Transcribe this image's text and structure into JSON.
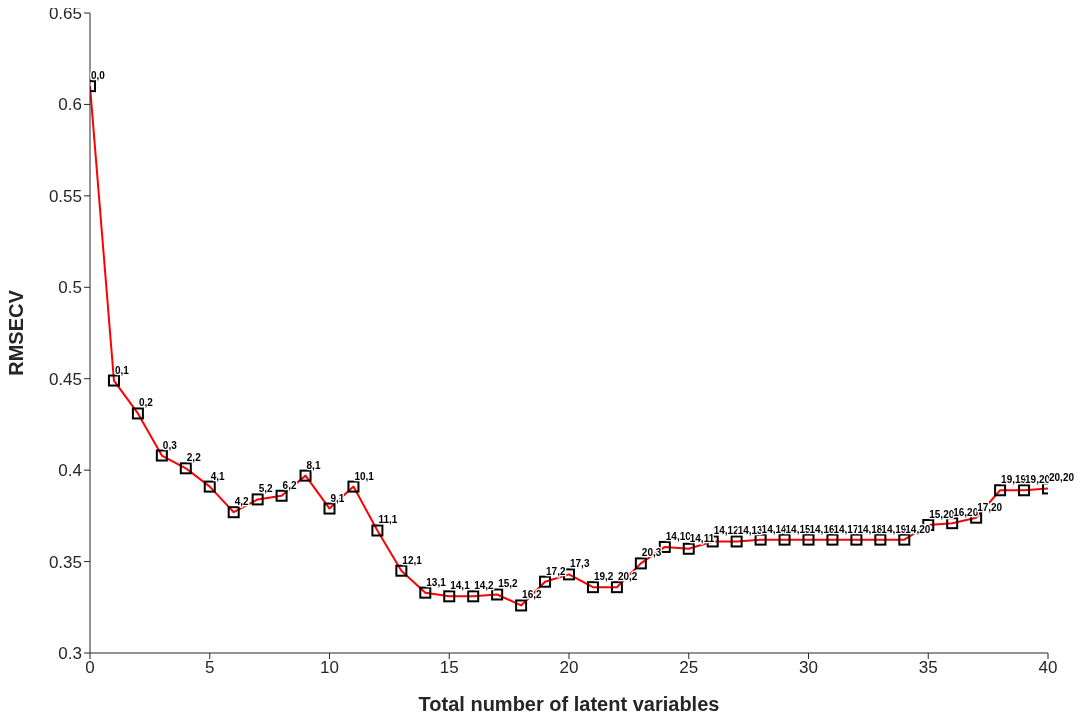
{
  "chart_data": {
    "type": "line",
    "xlabel": "Total number of latent variables",
    "ylabel": "RMSECV",
    "x": [
      0,
      1,
      2,
      3,
      4,
      5,
      6,
      7,
      8,
      9,
      10,
      11,
      12,
      13,
      14,
      15,
      16,
      17,
      18,
      19,
      20,
      21,
      22,
      23,
      24,
      25,
      26,
      27,
      28,
      29,
      30,
      31,
      32,
      33,
      34,
      35,
      36,
      37,
      38,
      39,
      40
    ],
    "series": [
      {
        "color": "#ff0000",
        "values": [
          0.61,
          0.449,
          0.431,
          0.408,
          0.401,
          0.391,
          0.377,
          0.384,
          0.386,
          0.397,
          0.379,
          0.391,
          0.367,
          0.345,
          0.333,
          0.331,
          0.331,
          0.332,
          0.326,
          0.339,
          0.343,
          0.336,
          0.336,
          0.349,
          0.358,
          0.357,
          0.361,
          0.361,
          0.362,
          0.362,
          0.362,
          0.362,
          0.362,
          0.362,
          0.362,
          0.37,
          0.371,
          0.374,
          0.389,
          0.389,
          0.39
        ]
      }
    ],
    "annotations": [
      {
        "text": "0,0",
        "x": 0,
        "y": 0.61
      },
      {
        "text": "0,1",
        "x": 1,
        "y": 0.449
      },
      {
        "text": "0,2",
        "x": 2,
        "y": 0.431
      },
      {
        "text": "0,3",
        "x": 3,
        "y": 0.408
      },
      {
        "text": "2,2",
        "x": 4,
        "y": 0.401
      },
      {
        "text": "4,1",
        "x": 5,
        "y": 0.391
      },
      {
        "text": "4,2",
        "x": 6,
        "y": 0.377
      },
      {
        "text": "5,2",
        "x": 7,
        "y": 0.384
      },
      {
        "text": "6,2",
        "x": 8,
        "y": 0.386
      },
      {
        "text": "8,1",
        "x": 9,
        "y": 0.397
      },
      {
        "text": "9,1",
        "x": 10,
        "y": 0.379
      },
      {
        "text": "10,1",
        "x": 11,
        "y": 0.391
      },
      {
        "text": "11,1",
        "x": 12,
        "y": 0.367
      },
      {
        "text": "12,1",
        "x": 13,
        "y": 0.345
      },
      {
        "text": "13,1",
        "x": 14,
        "y": 0.333
      },
      {
        "text": "14,1",
        "x": 15,
        "y": 0.331
      },
      {
        "text": "14,2",
        "x": 16,
        "y": 0.331
      },
      {
        "text": "15,2",
        "x": 17,
        "y": 0.332
      },
      {
        "text": "16,2",
        "x": 18,
        "y": 0.326
      },
      {
        "text": "17,2",
        "x": 19,
        "y": 0.339
      },
      {
        "text": "17,3",
        "x": 20,
        "y": 0.343
      },
      {
        "text": "19,2",
        "x": 21,
        "y": 0.336
      },
      {
        "text": "20,2",
        "x": 22,
        "y": 0.336
      },
      {
        "text": "20,3",
        "x": 23,
        "y": 0.349
      },
      {
        "text": "14,10",
        "x": 24,
        "y": 0.358
      },
      {
        "text": "14,11",
        "x": 25,
        "y": 0.357
      },
      {
        "text": "14,12",
        "x": 26,
        "y": 0.361
      },
      {
        "text": "14,13",
        "x": 27,
        "y": 0.361
      },
      {
        "text": "14,14",
        "x": 28,
        "y": 0.362
      },
      {
        "text": "14,15",
        "x": 29,
        "y": 0.362
      },
      {
        "text": "14,16",
        "x": 30,
        "y": 0.362
      },
      {
        "text": "14,17",
        "x": 31,
        "y": 0.362
      },
      {
        "text": "14,18",
        "x": 32,
        "y": 0.362
      },
      {
        "text": "14,19",
        "x": 33,
        "y": 0.362
      },
      {
        "text": "14,20",
        "x": 34,
        "y": 0.362
      },
      {
        "text": "15,20",
        "x": 35,
        "y": 0.37
      },
      {
        "text": "16,20",
        "x": 36,
        "y": 0.371
      },
      {
        "text": "17,20",
        "x": 37,
        "y": 0.374
      },
      {
        "text": "19,19",
        "x": 38,
        "y": 0.389
      },
      {
        "text": "19,20",
        "x": 39,
        "y": 0.389
      },
      {
        "text": "20,20",
        "x": 40,
        "y": 0.39
      }
    ],
    "xlim": [
      0,
      40
    ],
    "xticks": [
      0,
      5,
      10,
      15,
      20,
      25,
      30,
      35,
      40
    ],
    "ylim": [
      0.3,
      0.65
    ],
    "yticks": [
      0.3,
      0.35,
      0.4,
      0.45,
      0.5,
      0.55,
      0.6,
      0.65
    ],
    "grid": false,
    "legend": false,
    "marker": "square",
    "line_style": "solid"
  }
}
